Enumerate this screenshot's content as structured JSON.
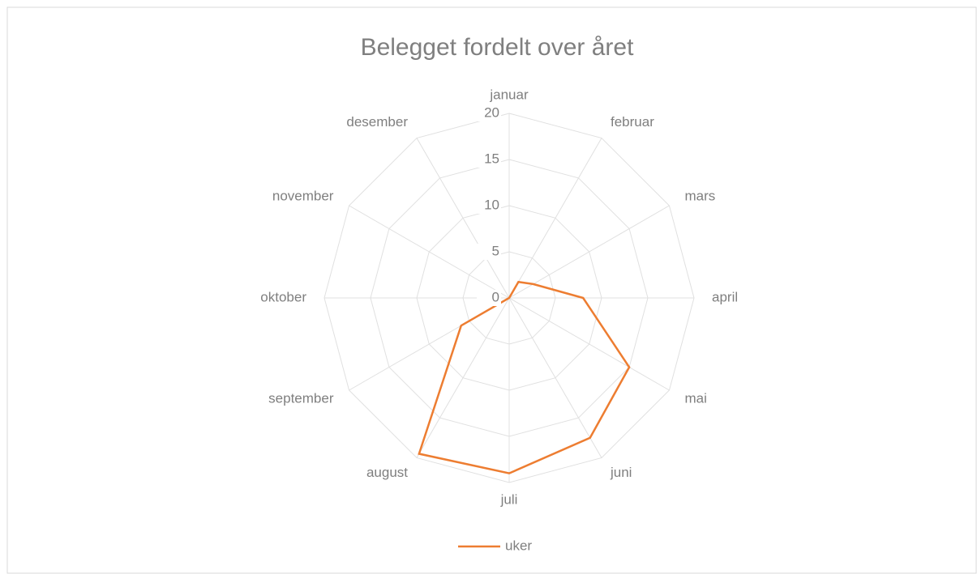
{
  "chart_data": {
    "type": "radar",
    "title": "Belegget fordelt over året",
    "categories": [
      "januar",
      "februar",
      "mars",
      "april",
      "mai",
      "juni",
      "juli",
      "august",
      "september",
      "oktober",
      "november",
      "desember"
    ],
    "series": [
      {
        "name": "uker",
        "color": "#ed7d31",
        "values": [
          0,
          2,
          3,
          8,
          15,
          17.5,
          19,
          19.5,
          6,
          0,
          0,
          0
        ]
      }
    ],
    "ylim": [
      0,
      20
    ],
    "yticks": [
      0,
      5,
      10,
      15,
      20
    ],
    "grid": true,
    "legend": "bottom"
  }
}
